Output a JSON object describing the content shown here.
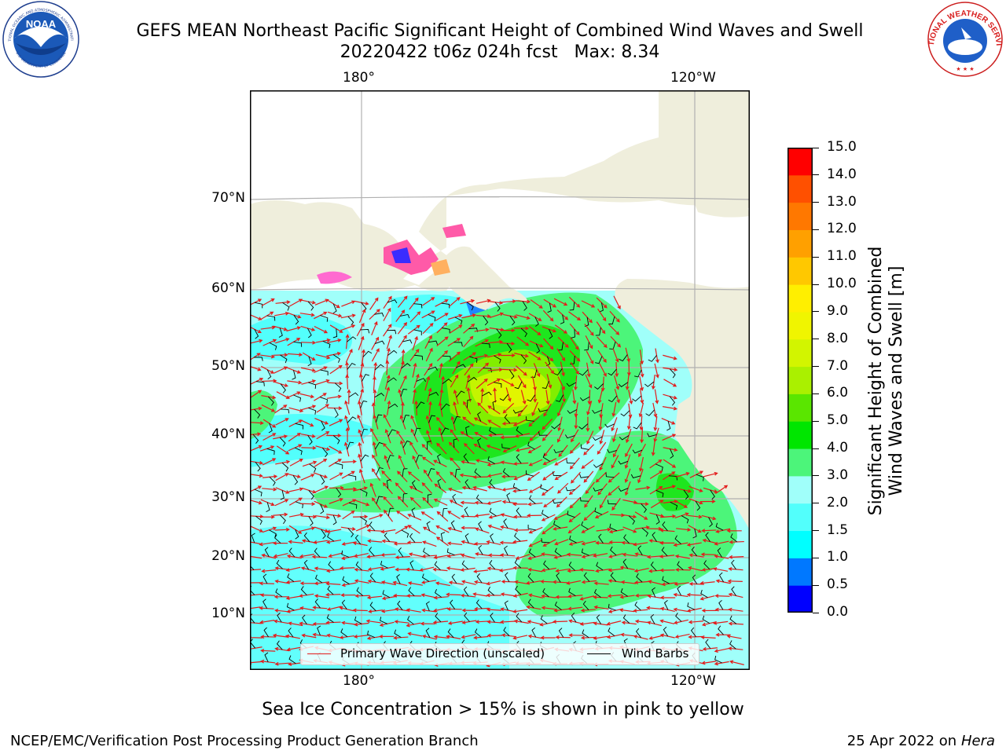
{
  "title": {
    "line1": "GEFS MEAN Northeast Pacific Significant Height of Combined Wind Waves and Swell",
    "line2": "20220422 t06z 024h fcst   Max: 8.34"
  },
  "logos": {
    "noaa_text": "NOAA",
    "noaa_ring_top": "NATIONAL OCEANIC AND ATMOSPHERIC ADMINISTRATION",
    "noaa_ring_bottom": "U.S. DEPARTMENT OF COMMERCE",
    "nws_ring": "NATIONAL WEATHER SERVICE"
  },
  "map": {
    "lon_labels_top": [
      "180°",
      "120°W"
    ],
    "lon_labels_bottom": [
      "180°",
      "120°W"
    ],
    "lat_labels": [
      "70°N",
      "60°N",
      "50°N",
      "40°N",
      "30°N",
      "20°N",
      "10°N"
    ],
    "colors": {
      "land": "#efeedc",
      "ocean_low": "#a0fffa",
      "ocean_mid": "#52fffc",
      "wave_3_4": "#4cf57a",
      "wave_4_5": "#1ee61e",
      "wave_5_6": "#82ee00",
      "wave_6_7": "#c4f400",
      "wave_7_8": "#e2f500",
      "grid": "#b0b0b0",
      "wave_arrow": "#e31a1a",
      "wind_barb": "#000000"
    }
  },
  "legend": {
    "wave_direction": "Primary Wave Direction (unscaled)",
    "wind_barbs": "Wind Barbs"
  },
  "colorbar": {
    "ticks": [
      "15.0",
      "14.0",
      "13.0",
      "12.0",
      "11.0",
      "10.0",
      "9.0",
      "8.0",
      "7.0",
      "6.0",
      "5.0",
      "4.0",
      "3.0",
      "2.0",
      "1.5",
      "1.0",
      "0.5",
      "0.0"
    ],
    "colors_bottom_to_top": [
      "#0000ff",
      "#0078ff",
      "#00ffff",
      "#52fffc",
      "#a0fffa",
      "#4cf57a",
      "#00e600",
      "#5ae600",
      "#aaf000",
      "#d2f500",
      "#f0f500",
      "#ffef00",
      "#ffc800",
      "#ffa000",
      "#ff7800",
      "#ff5000",
      "#ff0000"
    ],
    "label_line1": "Significant Height of Combined",
    "label_line2": "Wind Waves and Swell [m]"
  },
  "footer": {
    "sea_ice_note": "Sea Ice Concentration > 15% is shown in pink to yellow",
    "producer": "NCEP/EMC/Verification Post Processing Product Generation Branch",
    "date_text": "25 Apr 2022 on ",
    "machine": "Hera"
  }
}
